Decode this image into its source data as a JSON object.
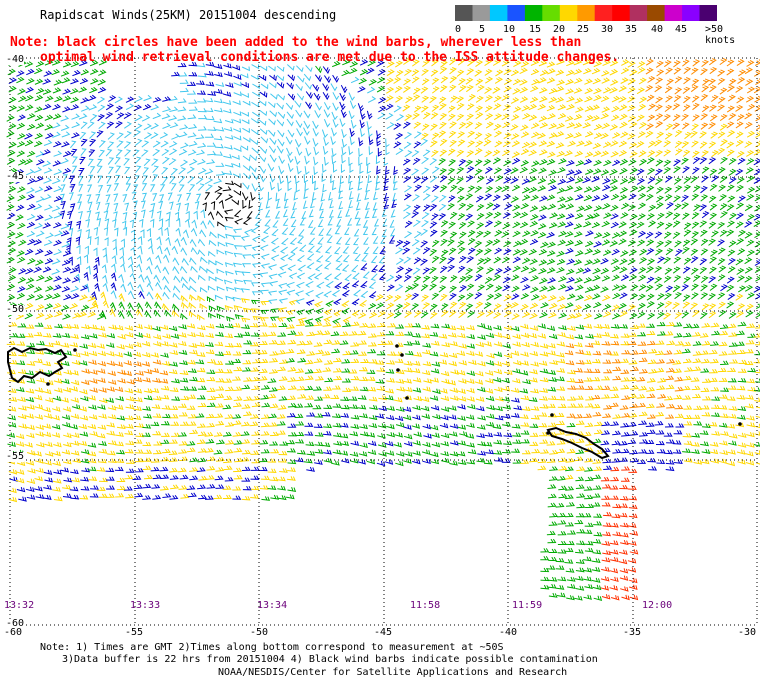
{
  "title": "Rapidscat Winds(25KM) 20151004 descending",
  "notes": [
    "Note: black circles have been added to the wind barbs, wherever less than",
    "optimal wind retrieval conditions are met due to the ISS attitude changes."
  ],
  "color_scale": {
    "units": ">50 knots",
    "labels": [
      "0",
      "5",
      "10",
      "15",
      "20",
      "25",
      "30",
      "35",
      "40",
      "45"
    ],
    "colors": [
      "#555555",
      "#9a9a9a",
      "#00c8ff",
      "#1a54ff",
      "#00b400",
      "#66dd00",
      "#ffd800",
      "#ff9a00",
      "#ff2020",
      "#ff0000",
      "#b03060",
      "#9a4a00",
      "#cc00cc",
      "#8a00ff",
      "#4a0070"
    ]
  },
  "lat_labels": [
    "-40",
    "-45",
    "-50",
    "-55",
    "-60"
  ],
  "lon_labels": [
    "-60",
    "-55",
    "-50",
    "-45",
    "-40",
    "-35",
    "-30"
  ],
  "time_labels": [
    "13:32",
    "13:33",
    "13:34",
    "11:58",
    "11:59",
    "12:00"
  ],
  "footer": [
    "Note: 1) Times are GMT 2)Times along bottom correspond to measurement at ~50S",
    "3)Data buffer is 22 hrs from 20151004 4) Black wind barbs indicate possible contamination",
    "NOAA/NESDIS/Center for Satellite Applications and Research"
  ],
  "barb_colors": {
    "calm": "#000000",
    "light": "#44c8ee",
    "moderate_blue": "#0000cc",
    "green": "#00aa00",
    "yellow": "#ffd800",
    "orange": "#ff8c00",
    "red": "#ff3000"
  }
}
